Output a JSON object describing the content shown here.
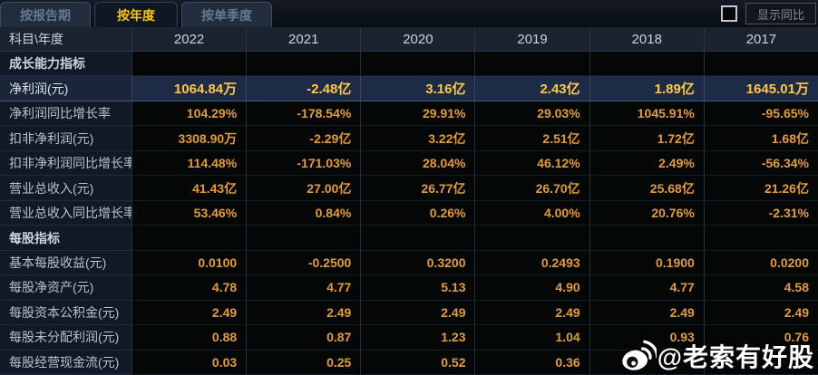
{
  "tabs": [
    {
      "label": "按报告期",
      "active": false
    },
    {
      "label": "按年度",
      "active": true
    },
    {
      "label": "按单季度",
      "active": false
    }
  ],
  "controls": {
    "show_yoy_label": "显示同比",
    "checkbox_checked": false,
    "more_icon": "»"
  },
  "table": {
    "corner_header": "科目\\年度",
    "year_headers": [
      "2022",
      "2021",
      "2020",
      "2019",
      "2018",
      "2017"
    ],
    "rows": [
      {
        "type": "section",
        "label": "成长能力指标",
        "values": [
          "",
          "",
          "",
          "",
          "",
          ""
        ]
      },
      {
        "type": "highlight",
        "label": "净利润(元)",
        "values": [
          "1064.84万",
          "-2.48亿",
          "3.16亿",
          "2.43亿",
          "1.89亿",
          "1645.01万"
        ]
      },
      {
        "type": "data",
        "label": "净利润同比增长率",
        "values": [
          "104.29%",
          "-178.54%",
          "29.91%",
          "29.03%",
          "1045.91%",
          "-95.65%"
        ]
      },
      {
        "type": "data",
        "label": "扣非净利润(元)",
        "values": [
          "3308.90万",
          "-2.29亿",
          "3.22亿",
          "2.51亿",
          "1.72亿",
          "1.68亿"
        ]
      },
      {
        "type": "data",
        "label": "扣非净利润同比增长率",
        "values": [
          "114.48%",
          "-171.03%",
          "28.04%",
          "46.12%",
          "2.49%",
          "-56.34%"
        ]
      },
      {
        "type": "data",
        "label": "营业总收入(元)",
        "values": [
          "41.43亿",
          "27.00亿",
          "26.77亿",
          "26.70亿",
          "25.68亿",
          "21.26亿"
        ]
      },
      {
        "type": "data",
        "label": "营业总收入同比增长率",
        "values": [
          "53.46%",
          "0.84%",
          "0.26%",
          "4.00%",
          "20.76%",
          "-2.31%"
        ]
      },
      {
        "type": "section",
        "label": "每股指标",
        "values": [
          "",
          "",
          "",
          "",
          "",
          ""
        ]
      },
      {
        "type": "data",
        "label": "基本每股收益(元)",
        "values": [
          "0.0100",
          "-0.2500",
          "0.3200",
          "0.2493",
          "0.1900",
          "0.0200"
        ]
      },
      {
        "type": "data",
        "label": "每股净资产(元)",
        "values": [
          "4.78",
          "4.77",
          "5.13",
          "4.90",
          "4.77",
          "4.58"
        ]
      },
      {
        "type": "data",
        "label": "每股资本公积金(元)",
        "values": [
          "2.49",
          "2.49",
          "2.49",
          "2.49",
          "2.49",
          "2.49"
        ]
      },
      {
        "type": "data",
        "label": "每股未分配利润(元)",
        "values": [
          "0.88",
          "0.87",
          "1.23",
          "1.04",
          "0.93",
          "0.76"
        ]
      },
      {
        "type": "data",
        "label": "每股经营现金流(元)",
        "values": [
          "0.03",
          "0.25",
          "0.52",
          "0.36",
          "",
          ""
        ]
      }
    ]
  },
  "watermark": {
    "text": "@老索有好股"
  },
  "colors": {
    "background": "#0a0e14",
    "value_gold": "#e29b36",
    "highlight_gold": "#ffc845",
    "tab_active_text": "#f4c21c",
    "highlight_row_bg": "#1e2b46",
    "label_column_bg": "#121926",
    "header_row_bg": "#1b2330"
  }
}
